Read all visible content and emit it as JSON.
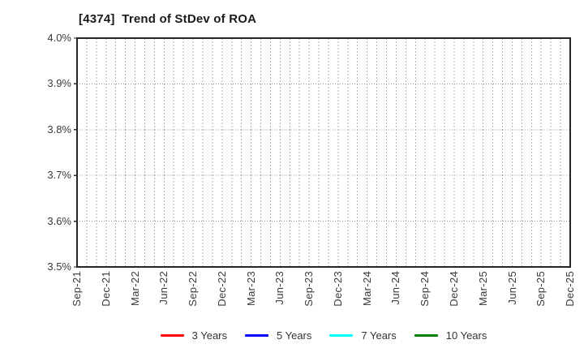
{
  "chart_data": {
    "type": "line",
    "title": "[4374]  Trend of StDev of ROA",
    "xlabel": "",
    "ylabel": "",
    "y_ticks": [
      "4.0%",
      "3.9%",
      "3.8%",
      "3.7%",
      "3.6%",
      "3.5%"
    ],
    "ylim": [
      3.5,
      4.0
    ],
    "y_unit": "%",
    "x_tick_labels": [
      "Sep-21",
      "Dec-21",
      "Mar-22",
      "Jun-22",
      "Sep-22",
      "Dec-22",
      "Mar-23",
      "Jun-23",
      "Sep-23",
      "Dec-23",
      "Mar-24",
      "Jun-24",
      "Sep-24",
      "Dec-24",
      "Mar-25",
      "Jun-25",
      "Sep-25",
      "Dec-25"
    ],
    "x_months_total": 52,
    "grid": true,
    "legend_position": "bottom",
    "series": [
      {
        "name": "3 Years",
        "color": "#ff0000",
        "values": []
      },
      {
        "name": "5 Years",
        "color": "#0000ff",
        "values": []
      },
      {
        "name": "7 Years",
        "color": "#00ffff",
        "values": []
      },
      {
        "name": "10 Years",
        "color": "#008000",
        "values": []
      }
    ]
  }
}
